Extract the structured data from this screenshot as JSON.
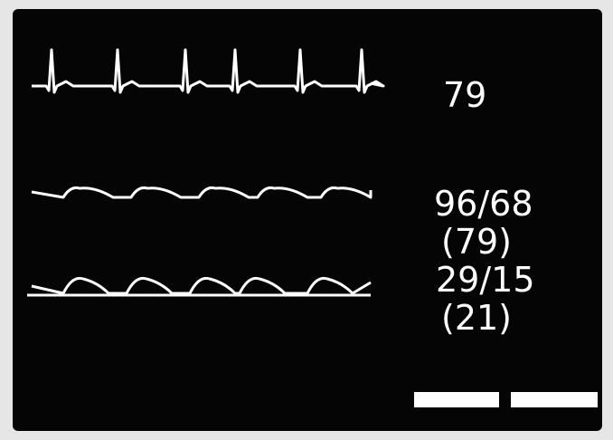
{
  "readouts": [
    "79",
    "96/68",
    "(79)",
    "29/15",
    "(21)"
  ]
}
